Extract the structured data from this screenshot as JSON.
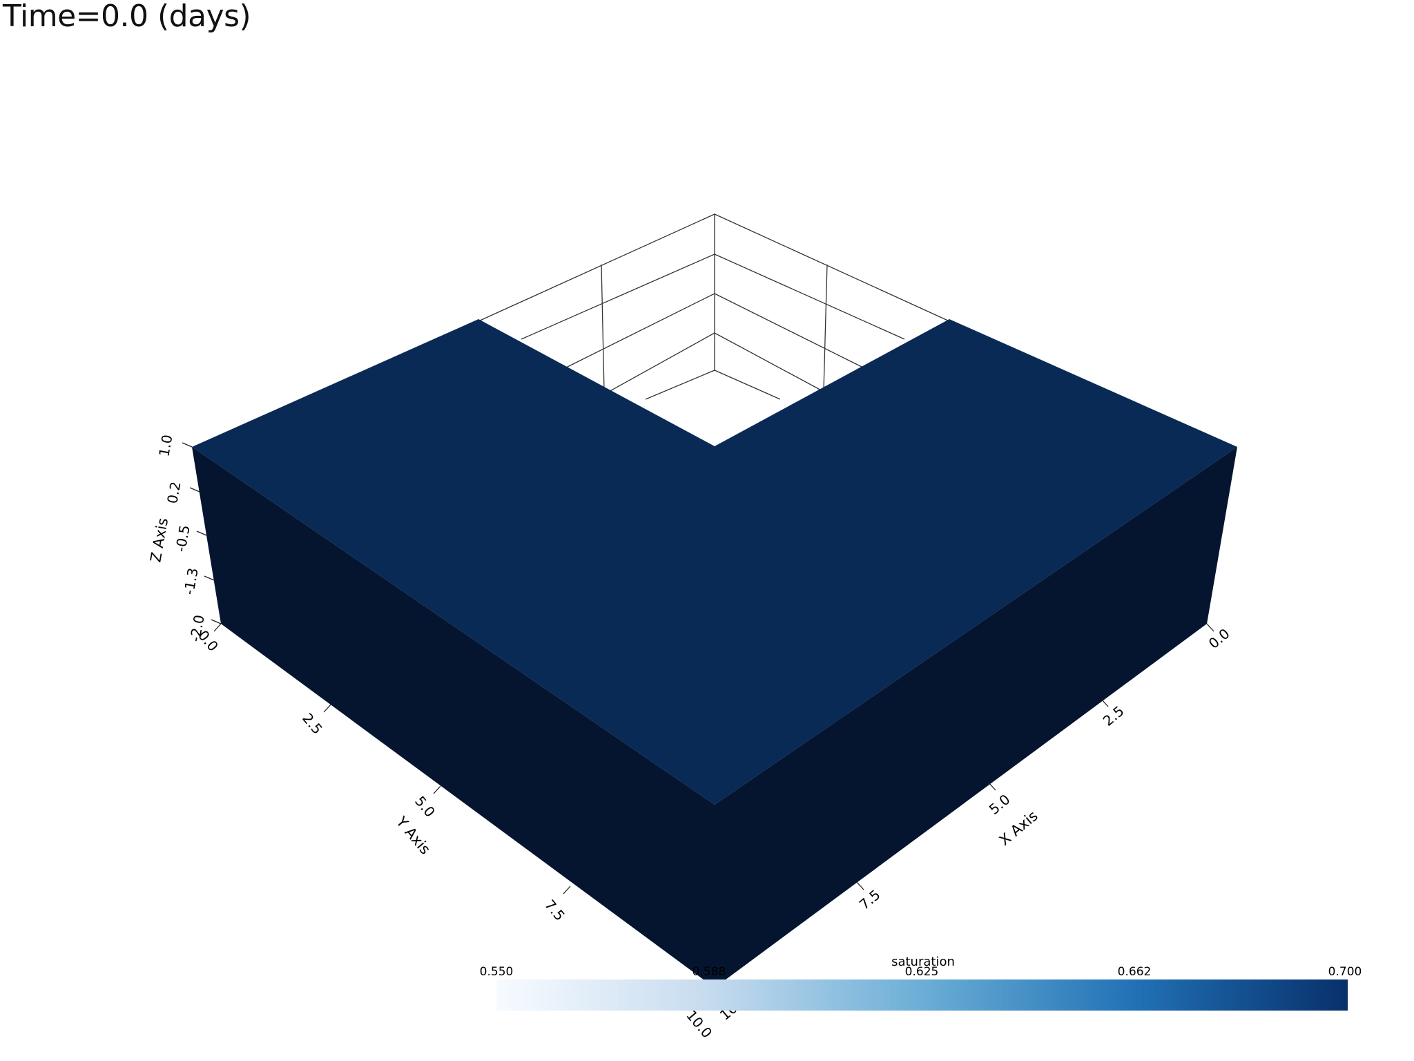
{
  "title": "Time=0.0 (days)",
  "axes": {
    "x": {
      "label": "X Axis",
      "ticks": [
        "0.0",
        "2.5",
        "5.0",
        "7.5",
        "10.0"
      ]
    },
    "y": {
      "label": "Y Axis",
      "ticks": [
        "0.0",
        "2.5",
        "5.0",
        "7.5",
        "10.0"
      ]
    },
    "z": {
      "label": "Z Axis",
      "ticks": [
        "1.0",
        "0.2",
        "-0.5",
        "-1.3",
        "-2.0"
      ]
    }
  },
  "colorbar": {
    "title": "saturation",
    "ticks": [
      "0.550",
      "0.588",
      "0.625",
      "0.662",
      "0.700"
    ],
    "colors": [
      "#f7fbff",
      "#c6dbef",
      "#6baed6",
      "#2171b5",
      "#08306b"
    ]
  },
  "colors": {
    "top_face": "#0a2a56",
    "side_face": "#05152f",
    "grid_line": "#333333"
  }
}
